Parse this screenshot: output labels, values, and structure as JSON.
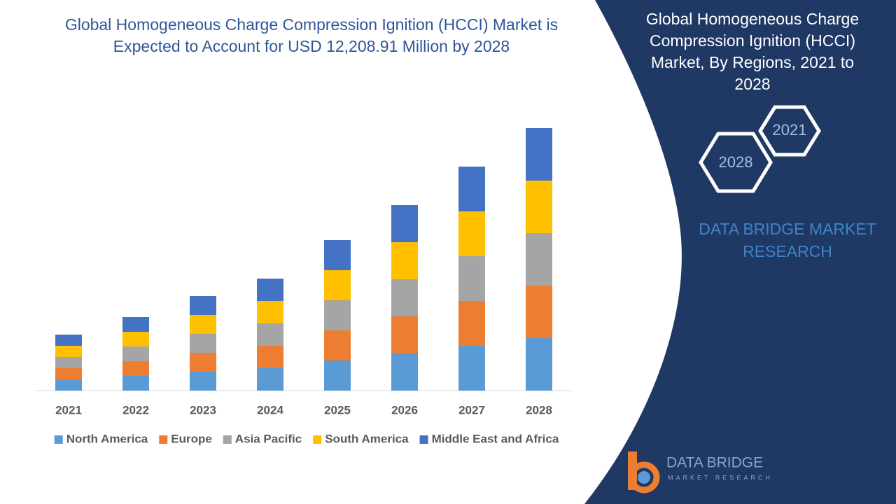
{
  "chart_data": {
    "type": "stacked_bar",
    "title": "Global Homogeneous Charge Compression Ignition (HCCI) Market is Expected to Account for USD 12,208.91 Million by 2028",
    "categories": [
      "2021",
      "2022",
      "2023",
      "2024",
      "2025",
      "2026",
      "2027",
      "2028"
    ],
    "series": [
      {
        "name": "North America",
        "color": "#5b9bd5",
        "values": [
          16,
          21,
          27,
          32,
          43,
          53,
          64,
          75
        ]
      },
      {
        "name": "Europe",
        "color": "#ed7d31",
        "values": [
          16,
          21,
          27,
          32,
          43,
          53,
          64,
          75
        ]
      },
      {
        "name": "Asia Pacific",
        "color": "#a5a5a5",
        "values": [
          16,
          21,
          27,
          32,
          43,
          53,
          64,
          75
        ]
      },
      {
        "name": "South America",
        "color": "#ffc000",
        "values": [
          16,
          21,
          27,
          32,
          43,
          53,
          64,
          75
        ]
      },
      {
        "name": "Middle East and Africa",
        "color": "#4472c4",
        "values": [
          16,
          21,
          27,
          32,
          43,
          53,
          64,
          75
        ]
      }
    ],
    "ylim": [
      0,
      400
    ],
    "legend": "bottom"
  },
  "panel": {
    "title": "Global Homogeneous Charge Compression Ignition (HCCI) Market, By Regions, 2021 to 2028",
    "hex_1": "2021",
    "hex_2": "2028",
    "brand": "DATA BRIDGE MARKET RESEARCH"
  },
  "logo": {
    "name": "DATA BRIDGE",
    "tagline": "MARKET RESEARCH"
  }
}
